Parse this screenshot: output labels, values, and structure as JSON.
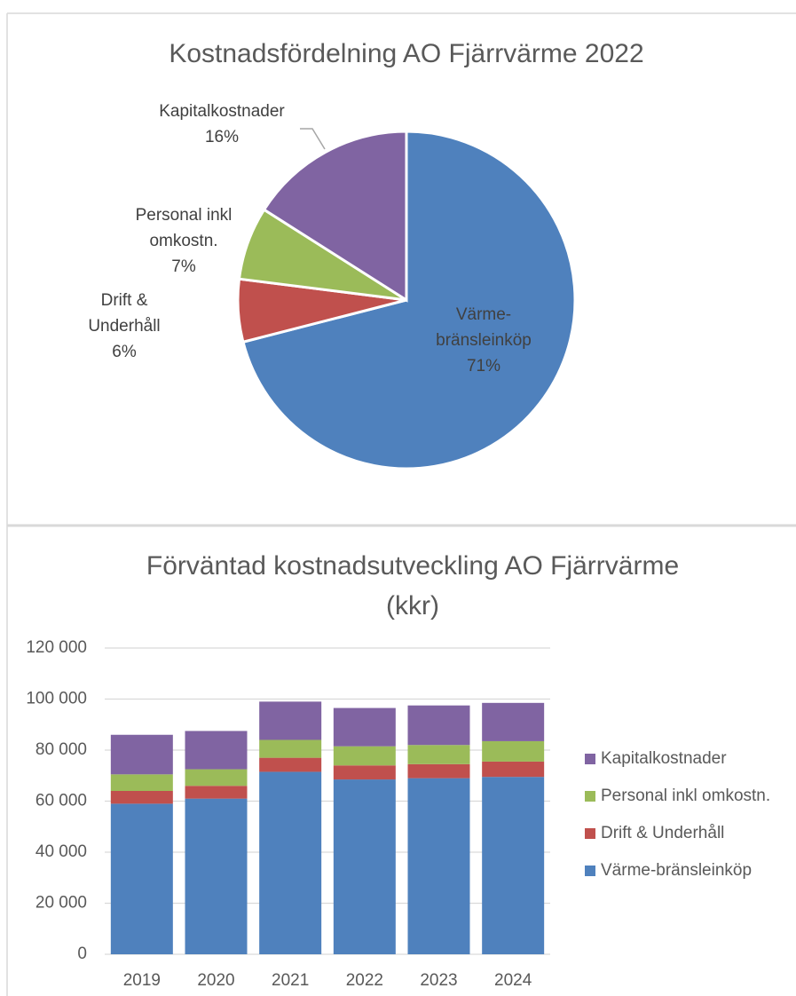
{
  "chart_data": [
    {
      "type": "pie",
      "title": "Kostnadsfördelning AO Fjärrvärme 2022",
      "categories": [
        "Värme-bränsleinköp",
        "Drift & Underhåll",
        "Personal inkl omkostn.",
        "Kapitalkostnader"
      ],
      "values": [
        71,
        6,
        7,
        16
      ],
      "value_labels": [
        "71%",
        "6%",
        "7%",
        "16%"
      ],
      "colors": [
        "#4f81bd",
        "#c0504d",
        "#9bbb59",
        "#8064a2"
      ]
    },
    {
      "type": "bar",
      "stacked": true,
      "title": "Förväntad kostnadsutveckling AO Fjärrvärme (kkr)",
      "categories": [
        "2019",
        "2020",
        "2021",
        "2022",
        "2023",
        "2024"
      ],
      "series": [
        {
          "name": "Värme-bränsleinköp",
          "color": "#4f81bd",
          "values": [
            59000,
            61000,
            71500,
            68500,
            69000,
            69500
          ]
        },
        {
          "name": "Drift & Underhåll",
          "color": "#c0504d",
          "values": [
            5000,
            5000,
            5500,
            5500,
            5500,
            6000
          ]
        },
        {
          "name": "Personal inkl omkostn.",
          "color": "#9bbb59",
          "values": [
            6500,
            6500,
            7000,
            7500,
            7500,
            8000
          ]
        },
        {
          "name": "Kapitalkostnader",
          "color": "#8064a2",
          "values": [
            15500,
            15000,
            15000,
            15000,
            15500,
            15000
          ]
        }
      ],
      "ylim": [
        0,
        120000
      ],
      "yticks": [
        0,
        {
          "value": 20000,
          "label": "20 000"
        },
        {
          "value": 40000,
          "label": "40 000"
        },
        {
          "value": 60000,
          "label": "60 000"
        },
        {
          "value": 80000,
          "label": "80 000"
        },
        {
          "value": 100000,
          "label": "100 000"
        },
        {
          "value": 120000,
          "label": "120 000"
        }
      ],
      "grid": true,
      "legend": "right"
    }
  ]
}
